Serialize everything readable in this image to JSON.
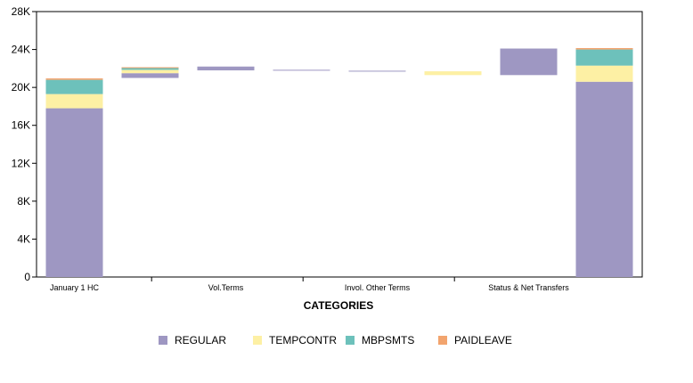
{
  "chart_data": {
    "type": "bar",
    "stacked": true,
    "waterfall": true,
    "title": "",
    "xlabel": "CATEGORIES",
    "ylabel": "",
    "ylim": [
      0,
      28000
    ],
    "yticks": [
      0,
      4000,
      8000,
      12000,
      16000,
      20000,
      24000,
      28000
    ],
    "ytick_labels": [
      "0",
      "4K",
      "8K",
      "12K",
      "16K",
      "20K",
      "24K",
      "28K"
    ],
    "categories": [
      "January 1 HC",
      "",
      "Vol.Terms",
      "",
      "Invol. Other Terms",
      "",
      "Status & Net Transfers",
      ""
    ],
    "bars": [
      {
        "base": 0,
        "segments": [
          17800,
          1500,
          1500,
          150
        ]
      },
      {
        "base": 21000,
        "segments": [
          500,
          350,
          250,
          30
        ]
      },
      {
        "base": 21800,
        "segments": [
          400,
          0,
          0,
          0
        ]
      },
      {
        "base": 21780,
        "segments": [
          80,
          0,
          0,
          0
        ]
      },
      {
        "base": 21680,
        "segments": [
          80,
          0,
          0,
          0
        ]
      },
      {
        "base": 21300,
        "segments": [
          0,
          400,
          0,
          0
        ]
      },
      {
        "base": 21300,
        "segments": [
          2800,
          0,
          0,
          0
        ]
      },
      {
        "base": 0,
        "segments": [
          20600,
          1700,
          1700,
          150
        ]
      }
    ],
    "series": [
      {
        "name": "REGULAR",
        "color": "#9e97c2"
      },
      {
        "name": "TEMPCONTR",
        "color": "#fdf0a4"
      },
      {
        "name": "MBPSMTS",
        "color": "#6dc1bb"
      },
      {
        "name": "PAIDLEAVE",
        "color": "#f2a46e"
      }
    ],
    "grid": false,
    "legend_position": "bottom"
  }
}
